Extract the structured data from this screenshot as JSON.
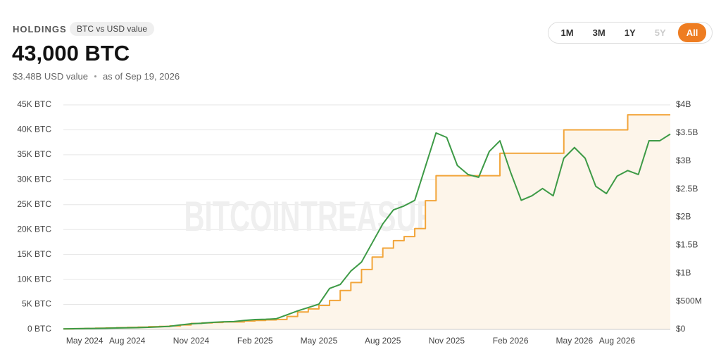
{
  "header": {
    "title": "HOLDINGS",
    "badge": "BTC vs USD value",
    "amount": "43,000 BTC",
    "usd_value": "$3.48B USD value",
    "as_of": "as of Sep 19, 2026"
  },
  "range_buttons": [
    "1M",
    "3M",
    "1Y",
    "5Y",
    "All"
  ],
  "active_range": "All",
  "disabled_ranges": [
    "5Y"
  ],
  "chart_data": {
    "type": "line",
    "watermark": "BITCOINTREASURIES.NET",
    "categories": [
      null,
      null,
      "May 2024",
      null,
      null,
      null,
      "Aug 2024",
      null,
      null,
      null,
      null,
      null,
      "Nov 2024",
      null,
      null,
      null,
      null,
      null,
      "Feb 2025",
      null,
      null,
      null,
      null,
      null,
      "May 2025",
      null,
      null,
      null,
      null,
      null,
      "Aug 2025",
      null,
      null,
      null,
      null,
      null,
      "Nov 2025",
      null,
      null,
      null,
      null,
      null,
      "Feb 2026",
      null,
      null,
      null,
      null,
      null,
      "May 2026",
      null,
      null,
      null,
      "Aug 2026",
      null,
      null,
      null,
      null,
      null
    ],
    "series": [
      {
        "color": "#f2a53a",
        "fill": "#fdf5ea",
        "step": true,
        "values": [
          100,
          150,
          200,
          250,
          300,
          350,
          400,
          450,
          550,
          600,
          700,
          900,
          1200,
          1300,
          1400,
          1500,
          1500,
          1700,
          1800,
          1900,
          2000,
          2600,
          3500,
          4100,
          4800,
          5800,
          7800,
          9400,
          12000,
          14500,
          16300,
          17800,
          18600,
          20200,
          25800,
          30800,
          30800,
          30800,
          30800,
          30800,
          30800,
          35300,
          35300,
          35300,
          35300,
          35300,
          35300,
          40000,
          40000,
          40000,
          40000,
          40000,
          40000,
          43000,
          43000,
          43000,
          43000,
          43000
        ]
      },
      {
        "color": "#3d9a46",
        "axis": "y2",
        "values": [
          10000000,
          12000000,
          15000000,
          18000000,
          20000000,
          25000000,
          28000000,
          32000000,
          38000000,
          45000000,
          55000000,
          80000000,
          100000000,
          110000000,
          125000000,
          135000000,
          140000000,
          160000000,
          175000000,
          180000000,
          190000000,
          260000000,
          330000000,
          390000000,
          450000000,
          730000000,
          800000000,
          1040000000,
          1200000000,
          1540000000,
          1880000000,
          2130000000,
          2200000000,
          2300000000,
          2900000000,
          3500000000,
          3420000000,
          2920000000,
          2760000000,
          2710000000,
          3170000000,
          3360000000,
          2800000000,
          2300000000,
          2380000000,
          2510000000,
          2380000000,
          3050000000,
          3240000000,
          3050000000,
          2550000000,
          2420000000,
          2730000000,
          2830000000,
          2760000000,
          3360000000,
          3360000000,
          3480000000
        ]
      }
    ],
    "ylim": [
      0,
      45000
    ],
    "yticks": [
      {
        "value": 0,
        "label": "0 BTC"
      },
      {
        "value": 5000,
        "label": "5K BTC"
      },
      {
        "value": 10000,
        "label": "10K BTC"
      },
      {
        "value": 15000,
        "label": "15K BTC"
      },
      {
        "value": 20000,
        "label": "20K BTC"
      },
      {
        "value": 25000,
        "label": "25K BTC"
      },
      {
        "value": 30000,
        "label": "30K BTC"
      },
      {
        "value": 35000,
        "label": "35K BTC"
      },
      {
        "value": 40000,
        "label": "40K BTC"
      },
      {
        "value": 45000,
        "label": "45K BTC"
      }
    ],
    "y2lim": [
      0,
      4000000000
    ],
    "y2ticks": [
      {
        "value": 0,
        "label": "$0"
      },
      {
        "value": 500000000,
        "label": "$500M"
      },
      {
        "value": 1000000000,
        "label": "$1B"
      },
      {
        "value": 1500000000,
        "label": "$1.5B"
      },
      {
        "value": 2000000000,
        "label": "$2B"
      },
      {
        "value": 2500000000,
        "label": "$2.5B"
      },
      {
        "value": 3000000000,
        "label": "$3B"
      },
      {
        "value": 3500000000,
        "label": "$3.5B"
      },
      {
        "value": 4000000000,
        "label": "$4B"
      }
    ],
    "grid": true
  }
}
